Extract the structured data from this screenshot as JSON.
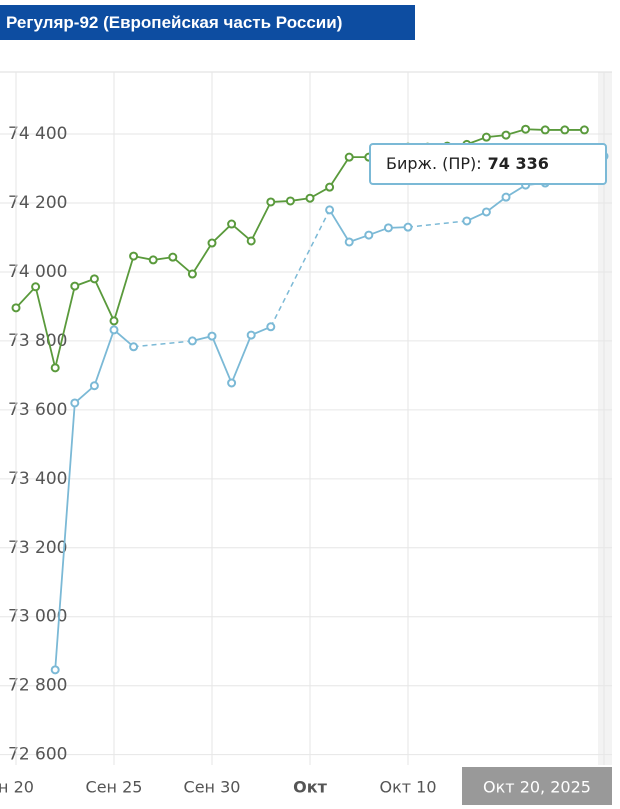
{
  "chart_data": {
    "type": "line",
    "title": "Регуляр-92 (Европейская часть России)",
    "x": [
      "2025-09-20",
      "2025-09-21",
      "2025-09-22",
      "2025-09-23",
      "2025-09-24",
      "2025-09-25",
      "2025-09-26",
      "2025-09-27",
      "2025-09-28",
      "2025-09-29",
      "2025-09-30",
      "2025-10-01",
      "2025-10-02",
      "2025-10-03",
      "2025-10-04",
      "2025-10-05",
      "2025-10-06",
      "2025-10-07",
      "2025-10-08",
      "2025-10-09",
      "2025-10-10",
      "2025-10-11",
      "2025-10-12",
      "2025-10-13",
      "2025-10-14",
      "2025-10-15",
      "2025-10-16",
      "2025-10-17",
      "2025-10-18",
      "2025-10-19",
      "2025-10-20"
    ],
    "series": [
      {
        "color": "#5a9a3c",
        "values": [
          73896,
          73957,
          73722,
          73959,
          73980,
          73858,
          74046,
          74035,
          74043,
          73994,
          74084,
          74139,
          74090,
          74203,
          74206,
          74214,
          74246,
          74333,
          74333,
          74350,
          74362,
          74362,
          74365,
          74370,
          74391,
          74397,
          74414,
          74412,
          74412,
          74412,
          null
        ]
      },
      {
        "color": "#7bb9d6",
        "values": [
          null,
          null,
          72846,
          73620,
          73670,
          73832,
          73783,
          null,
          null,
          73800,
          73814,
          73678,
          73817,
          73841,
          null,
          null,
          74180,
          74087,
          74107,
          74128,
          74130,
          null,
          null,
          74148,
          74174,
          74217,
          74252,
          74258,
          74272,
          74296,
          74336
        ]
      }
    ],
    "tooltip": {
      "label": "Бирж. (ПР):",
      "value": 74336,
      "value_label": "74 336"
    },
    "xlim": [
      "2025-09-20",
      "2025-10-20"
    ],
    "xticks": [
      {
        "value": "2025-09-20",
        "label": "н 20"
      },
      {
        "value": "2025-09-25",
        "label": "Сен 25"
      },
      {
        "value": "2025-09-30",
        "label": "Сен 30"
      },
      {
        "value": "2025-10-05",
        "label": "Окт"
      },
      {
        "value": "2025-10-10",
        "label": "Окт 10"
      },
      {
        "value": "2025-10-20",
        "label": "Окт 20, 2025"
      }
    ],
    "ylim": [
      72570,
      74580
    ],
    "yticks": [
      {
        "value": 72600,
        "label": "72 600"
      },
      {
        "value": 72800,
        "label": "72 800"
      },
      {
        "value": 73000,
        "label": "73 000"
      },
      {
        "value": 73200,
        "label": "73 200"
      },
      {
        "value": 73400,
        "label": "73 400"
      },
      {
        "value": 73600,
        "label": "73 600"
      },
      {
        "value": 73800,
        "label": "73 800"
      },
      {
        "value": 74000,
        "label": "74 000"
      },
      {
        "value": 74200,
        "label": "74 200"
      },
      {
        "value": 74400,
        "label": "74 400"
      }
    ],
    "grid": true
  }
}
